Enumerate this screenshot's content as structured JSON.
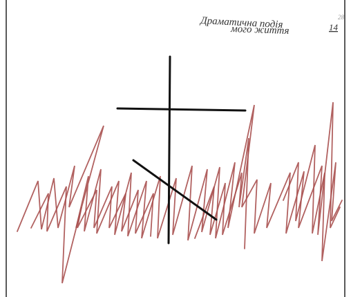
{
  "caption": {
    "line1": "Драматична подія",
    "line2": "мого життя",
    "number": "14",
    "page": "28"
  }
}
